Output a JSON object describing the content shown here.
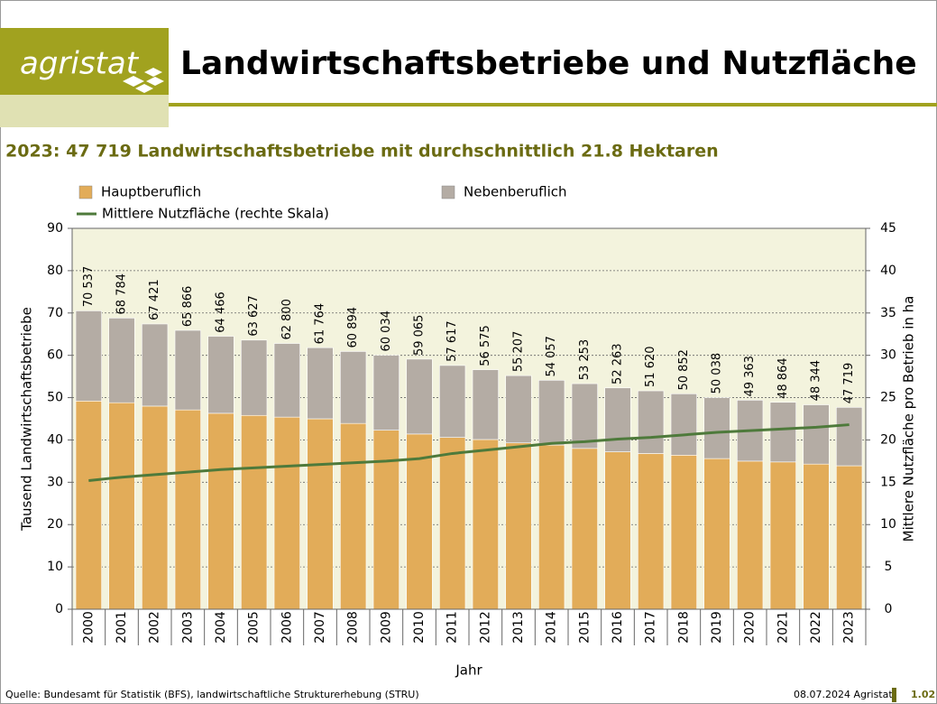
{
  "header": {
    "logo": "agristat",
    "title": "Landwirtschaftsbetriebe und Nutzfläche"
  },
  "chart_data": {
    "type": "bar",
    "stacked": true,
    "title": "2023: 47 719 Landwirtschaftsbetriebe mit durchschnittlich 21.8 Hektaren",
    "x_label": "Jahr",
    "y_label": "Tausend Landwirtschaftsbetriebe",
    "y2_label": "Mittlere Nutzfläche pro Betrieb in ha",
    "categories": [
      "2000",
      "2001",
      "2002",
      "2003",
      "2004",
      "2005",
      "2006",
      "2007",
      "2008",
      "2009",
      "2010",
      "2011",
      "2012",
      "2013",
      "2014",
      "2015",
      "2016",
      "2017",
      "2018",
      "2019",
      "2020",
      "2021",
      "2022",
      "2023"
    ],
    "series": [
      {
        "name": "Hauptberuflich",
        "color": "#e2ac59",
        "type": "bar",
        "values": [
          49.2,
          48.8,
          48.0,
          47.1,
          46.3,
          45.8,
          45.4,
          45.0,
          43.9,
          42.3,
          41.4,
          40.6,
          40.1,
          39.3,
          38.8,
          38.0,
          37.2,
          36.8,
          36.4,
          35.6,
          35.0,
          34.8,
          34.3,
          33.9
        ]
      },
      {
        "name": "Nebenberuflich",
        "color": "#b4aca4",
        "type": "bar",
        "values": [
          21.3,
          20.0,
          19.4,
          18.8,
          18.2,
          17.8,
          17.4,
          16.8,
          17.0,
          17.7,
          17.7,
          17.0,
          16.5,
          15.9,
          15.3,
          15.3,
          15.1,
          14.8,
          14.5,
          14.4,
          14.4,
          14.1,
          14.0,
          13.8
        ]
      },
      {
        "name": "Mittlere Nutzfläche (rechte Skala)",
        "color": "#4e7a3b",
        "type": "line",
        "axis": "y2",
        "values": [
          15.2,
          15.6,
          15.9,
          16.2,
          16.5,
          16.7,
          16.9,
          17.1,
          17.3,
          17.5,
          17.8,
          18.4,
          18.8,
          19.2,
          19.6,
          19.8,
          20.1,
          20.3,
          20.6,
          20.9,
          21.1,
          21.3,
          21.5,
          21.8
        ]
      }
    ],
    "totals": {
      "values": [
        70.537,
        68.784,
        67.421,
        65.866,
        64.466,
        63.627,
        62.8,
        61.764,
        60.894,
        60.034,
        59.065,
        57.617,
        56.575,
        55.207,
        54.057,
        53.253,
        52.263,
        51.62,
        50.852,
        50.038,
        49.363,
        48.864,
        48.344,
        47.719
      ],
      "value_labels": [
        "70 537",
        "68 784",
        "67 421",
        "65 866",
        "64 466",
        "63 627",
        "62 800",
        "61 764",
        "60 894",
        "60 034",
        "59 065",
        "57 617",
        "56 575",
        "55 207",
        "54 057",
        "53 253",
        "52 263",
        "51 620",
        "50 852",
        "50 038",
        "49 363",
        "48 864",
        "48 344",
        "47 719"
      ]
    },
    "ylim": [
      0,
      90
    ],
    "yticks": [
      0,
      10,
      20,
      30,
      40,
      50,
      60,
      70,
      80,
      90
    ],
    "y2lim": [
      0,
      45
    ],
    "y2ticks": [
      0,
      5,
      10,
      15,
      20,
      25,
      30,
      35,
      40,
      45
    ],
    "grid": true,
    "plot_background": "#f3f3dd"
  },
  "footer": {
    "source": "Quelle: Bundesamt für Statistik (BFS), landwirtschaftliche Strukturerhebung (STRU)",
    "date": "08.07.2024 Agristat",
    "page": "1.02"
  }
}
